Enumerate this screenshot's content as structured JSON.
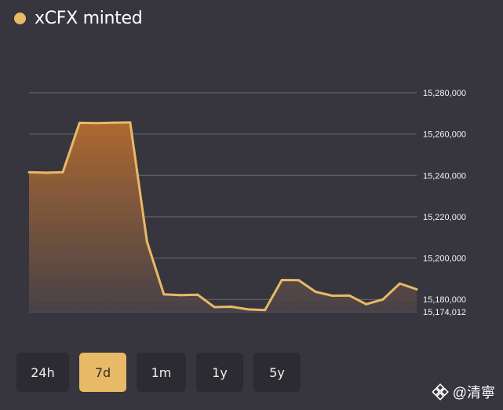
{
  "header": {
    "title": "xCFX minted",
    "series_color": "#e8b966"
  },
  "chart_data": {
    "type": "area",
    "title": "xCFX minted",
    "x": [
      0,
      1,
      2,
      3,
      4,
      5,
      6,
      7,
      8,
      9,
      10,
      11,
      12,
      13,
      14,
      15,
      16,
      17,
      18,
      19,
      20,
      21,
      22,
      23
    ],
    "values": [
      15241500,
      15241300,
      15241500,
      15265400,
      15265300,
      15265500,
      15265600,
      15208000,
      15182500,
      15182100,
      15182300,
      15176300,
      15176500,
      15175200,
      15174900,
      15189400,
      15189300,
      15183700,
      15181800,
      15181900,
      15177700,
      15180000,
      15187700,
      15184900
    ],
    "ylim": [
      15174012,
      15280000
    ],
    "y_ticks": [
      "15,280,000",
      "15,260,000",
      "15,240,000",
      "15,220,000",
      "15,200,000",
      "15,180,000",
      "15,174,012"
    ],
    "y_tick_values": [
      15280000,
      15260000,
      15240000,
      15220000,
      15200000,
      15180000,
      15174012
    ],
    "grid": true,
    "line_color": "#e8b966",
    "fill_color_top": "#b36b30",
    "fill_color_bottom": "#4a4349"
  },
  "range_selector": {
    "buttons": [
      {
        "label": "24h",
        "active": false
      },
      {
        "label": "7d",
        "active": true
      },
      {
        "label": "1m",
        "active": false
      },
      {
        "label": "1y",
        "active": false
      },
      {
        "label": "5y",
        "active": false
      }
    ],
    "active_color": "#e8b966"
  },
  "watermark": {
    "text": "@清寧",
    "icon": "binance-square-icon"
  }
}
